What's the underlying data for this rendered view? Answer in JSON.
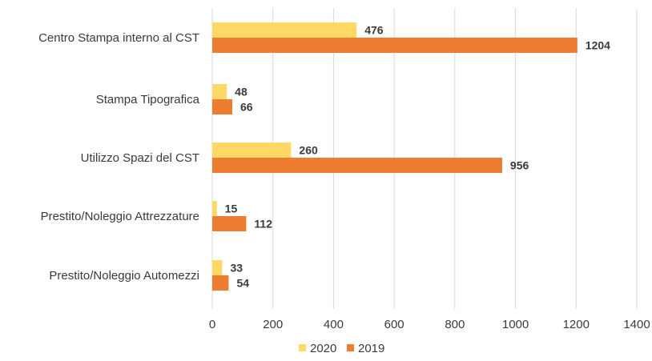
{
  "chart_data": {
    "type": "bar",
    "orientation": "horizontal",
    "categories": [
      "Centro Stampa interno al CST",
      "Stampa Tipografica",
      "Utilizzo Spazi del CST",
      "Prestito/Noleggio Attrezzature",
      "Prestito/Noleggio Automezzi"
    ],
    "series": [
      {
        "name": "2020",
        "color": "#FFD966",
        "values": [
          476,
          48,
          260,
          15,
          33
        ]
      },
      {
        "name": "2019",
        "color": "#ED7D31",
        "values": [
          1204,
          66,
          956,
          112,
          54
        ]
      }
    ],
    "xticks": [
      "0",
      "200",
      "400",
      "600",
      "800",
      "1000",
      "1200",
      "1400"
    ],
    "xlim": [
      0,
      1400
    ],
    "grid": true,
    "legend_position": "bottom",
    "title": "",
    "xlabel": "",
    "ylabel": ""
  }
}
